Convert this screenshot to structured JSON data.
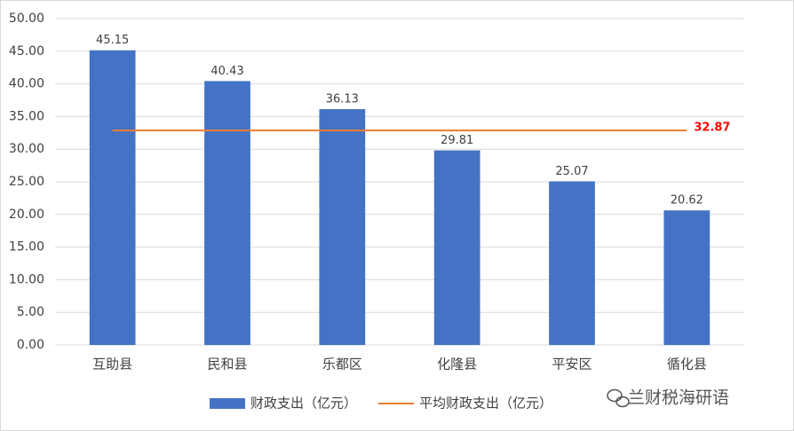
{
  "chart_data": {
    "type": "bar",
    "categories": [
      "互助县",
      "民和县",
      "乐都区",
      "化隆县",
      "平安区",
      "循化县"
    ],
    "series": [
      {
        "name": "财政支出（亿元）",
        "type": "bar",
        "color": "#4472c4",
        "values": [
          45.15,
          40.43,
          36.13,
          29.81,
          25.07,
          20.62
        ]
      },
      {
        "name": "平均财政支出（亿元）",
        "type": "line",
        "color": "#ed7d31",
        "values": [
          32.87,
          32.87,
          32.87,
          32.87,
          32.87,
          32.87
        ]
      }
    ],
    "ylim": [
      0,
      50
    ],
    "yticks": [
      {
        "value": 0,
        "label": "0.00"
      },
      {
        "value": 5,
        "label": "5.00"
      },
      {
        "value": 10,
        "label": "10.00"
      },
      {
        "value": 15,
        "label": "15.00"
      },
      {
        "value": 20,
        "label": "20.00"
      },
      {
        "value": 25,
        "label": "25.00"
      },
      {
        "value": 30,
        "label": "30.00"
      },
      {
        "value": 35,
        "label": "35.00"
      },
      {
        "value": 40,
        "label": "40.00"
      },
      {
        "value": 45,
        "label": "45.00"
      },
      {
        "value": 50,
        "label": "50.00"
      }
    ],
    "grid": true,
    "legend": "bottom",
    "watermark": "兰财税海研语"
  }
}
